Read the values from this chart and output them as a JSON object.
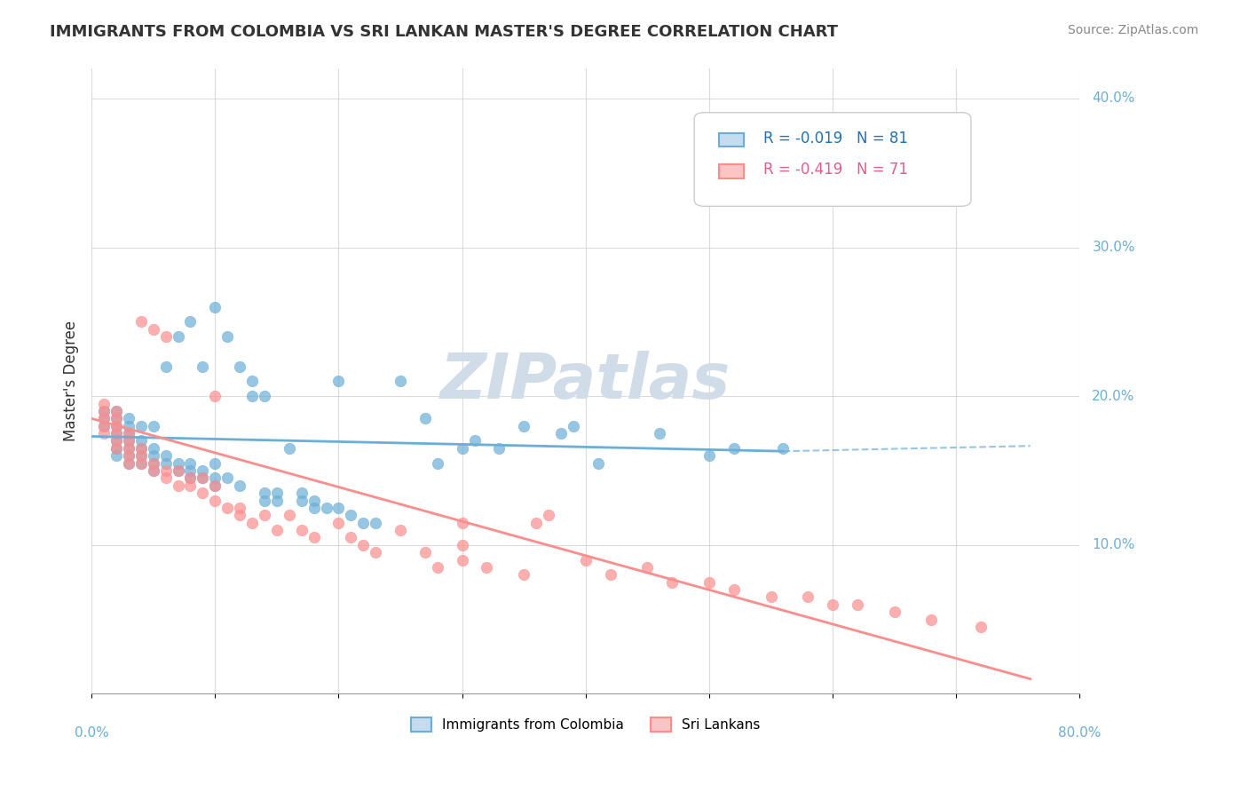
{
  "title": "IMMIGRANTS FROM COLOMBIA VS SRI LANKAN MASTER'S DEGREE CORRELATION CHART",
  "source": "Source: ZipAtlas.com",
  "xlabel": "",
  "ylabel": "Master's Degree",
  "xlim": [
    0.0,
    0.8
  ],
  "ylim": [
    0.0,
    0.42
  ],
  "xticks": [
    0.0,
    0.1,
    0.2,
    0.3,
    0.4,
    0.5,
    0.6,
    0.7,
    0.8
  ],
  "xticklabels": [
    "0.0%",
    "",
    "",
    "",
    "",
    "",
    "",
    "",
    "80.0%"
  ],
  "yticks": [
    0.0,
    0.1,
    0.2,
    0.3,
    0.4
  ],
  "yticklabels": [
    "",
    "10.0%",
    "20.0%",
    "30.0%",
    "40.0%"
  ],
  "legend_R_blue": "R = -0.019",
  "legend_N_blue": "N = 81",
  "legend_R_pink": "R = -0.419",
  "legend_N_pink": "N = 71",
  "blue_color": "#6baed6",
  "pink_color": "#fd8d8d",
  "blue_fill": "#c6dbef",
  "pink_fill": "#fcc5c5",
  "watermark": "ZIPatlas",
  "blue_scatter_x": [
    0.01,
    0.01,
    0.01,
    0.02,
    0.02,
    0.02,
    0.02,
    0.02,
    0.02,
    0.02,
    0.03,
    0.03,
    0.03,
    0.03,
    0.03,
    0.03,
    0.03,
    0.04,
    0.04,
    0.04,
    0.04,
    0.04,
    0.05,
    0.05,
    0.05,
    0.05,
    0.05,
    0.06,
    0.06,
    0.06,
    0.07,
    0.07,
    0.07,
    0.08,
    0.08,
    0.08,
    0.08,
    0.09,
    0.09,
    0.09,
    0.1,
    0.1,
    0.1,
    0.1,
    0.11,
    0.11,
    0.12,
    0.12,
    0.13,
    0.13,
    0.14,
    0.14,
    0.14,
    0.15,
    0.15,
    0.16,
    0.17,
    0.17,
    0.18,
    0.18,
    0.19,
    0.2,
    0.2,
    0.21,
    0.22,
    0.23,
    0.25,
    0.27,
    0.28,
    0.3,
    0.31,
    0.33,
    0.35,
    0.38,
    0.39,
    0.41,
    0.46,
    0.5,
    0.52,
    0.56,
    0.6
  ],
  "blue_scatter_y": [
    0.18,
    0.19,
    0.185,
    0.175,
    0.18,
    0.185,
    0.19,
    0.165,
    0.17,
    0.16,
    0.155,
    0.16,
    0.165,
    0.17,
    0.175,
    0.18,
    0.185,
    0.155,
    0.16,
    0.165,
    0.17,
    0.18,
    0.15,
    0.155,
    0.16,
    0.165,
    0.18,
    0.155,
    0.16,
    0.22,
    0.15,
    0.155,
    0.24,
    0.145,
    0.15,
    0.155,
    0.25,
    0.22,
    0.145,
    0.15,
    0.14,
    0.145,
    0.155,
    0.26,
    0.24,
    0.145,
    0.14,
    0.22,
    0.21,
    0.2,
    0.13,
    0.135,
    0.2,
    0.13,
    0.135,
    0.165,
    0.13,
    0.135,
    0.125,
    0.13,
    0.125,
    0.21,
    0.125,
    0.12,
    0.115,
    0.115,
    0.21,
    0.185,
    0.155,
    0.165,
    0.17,
    0.165,
    0.18,
    0.175,
    0.18,
    0.155,
    0.175,
    0.16,
    0.165,
    0.165,
    0.37
  ],
  "pink_scatter_x": [
    0.01,
    0.01,
    0.01,
    0.01,
    0.01,
    0.02,
    0.02,
    0.02,
    0.02,
    0.02,
    0.02,
    0.03,
    0.03,
    0.03,
    0.03,
    0.03,
    0.04,
    0.04,
    0.04,
    0.04,
    0.05,
    0.05,
    0.05,
    0.06,
    0.06,
    0.06,
    0.07,
    0.07,
    0.08,
    0.08,
    0.09,
    0.09,
    0.1,
    0.1,
    0.1,
    0.11,
    0.12,
    0.12,
    0.13,
    0.14,
    0.15,
    0.16,
    0.17,
    0.18,
    0.2,
    0.21,
    0.22,
    0.23,
    0.25,
    0.27,
    0.28,
    0.3,
    0.3,
    0.3,
    0.32,
    0.35,
    0.36,
    0.37,
    0.4,
    0.42,
    0.45,
    0.47,
    0.5,
    0.52,
    0.55,
    0.58,
    0.6,
    0.62,
    0.65,
    0.68,
    0.72
  ],
  "pink_scatter_y": [
    0.185,
    0.19,
    0.18,
    0.175,
    0.195,
    0.17,
    0.175,
    0.18,
    0.165,
    0.185,
    0.19,
    0.155,
    0.16,
    0.165,
    0.17,
    0.175,
    0.16,
    0.155,
    0.165,
    0.25,
    0.155,
    0.15,
    0.245,
    0.145,
    0.15,
    0.24,
    0.14,
    0.15,
    0.14,
    0.145,
    0.135,
    0.145,
    0.13,
    0.14,
    0.2,
    0.125,
    0.12,
    0.125,
    0.115,
    0.12,
    0.11,
    0.12,
    0.11,
    0.105,
    0.115,
    0.105,
    0.1,
    0.095,
    0.11,
    0.095,
    0.085,
    0.115,
    0.1,
    0.09,
    0.085,
    0.08,
    0.115,
    0.12,
    0.09,
    0.08,
    0.085,
    0.075,
    0.075,
    0.07,
    0.065,
    0.065,
    0.06,
    0.06,
    0.055,
    0.05,
    0.045
  ],
  "blue_line_x": [
    0.0,
    0.56
  ],
  "blue_line_y": [
    0.173,
    0.163
  ],
  "pink_line_x": [
    0.0,
    0.76
  ],
  "pink_line_y": [
    0.185,
    0.01
  ],
  "grid_color": "#cccccc",
  "title_color": "#333333",
  "axis_label_color": "#6baed6",
  "tick_color": "#6baed6",
  "watermark_color": "#d0dce8"
}
